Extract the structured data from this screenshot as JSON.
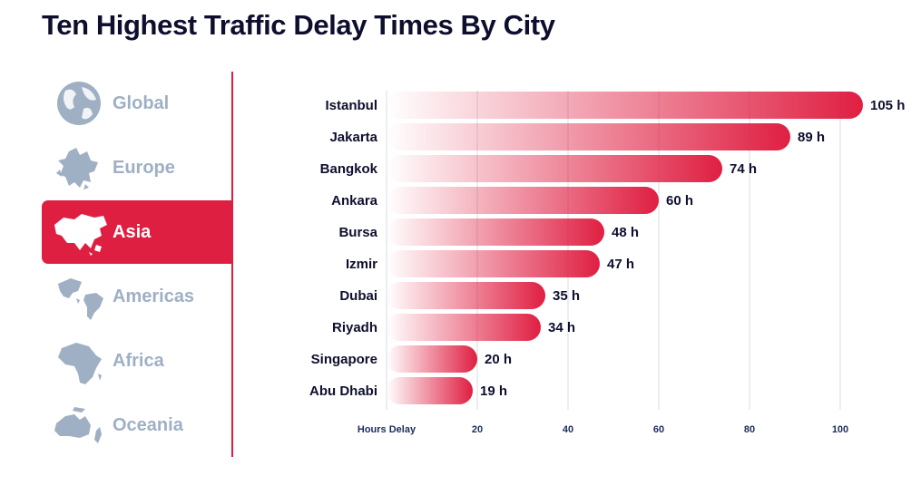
{
  "title": "Ten Highest Traffic Delay Times By City",
  "sidebar": {
    "items": [
      {
        "label": "Global",
        "icon": "globe-icon",
        "active": false
      },
      {
        "label": "Europe",
        "icon": "europe-map-icon",
        "active": false
      },
      {
        "label": "Asia",
        "icon": "asia-map-icon",
        "active": true
      },
      {
        "label": "Americas",
        "icon": "americas-map-icon",
        "active": false
      },
      {
        "label": "Africa",
        "icon": "africa-map-icon",
        "active": false
      },
      {
        "label": "Oceania",
        "icon": "oceania-map-icon",
        "active": false
      }
    ]
  },
  "colors": {
    "accent": "#df1f42",
    "inactive": "#9fb0c4",
    "title": "#0e0f2e",
    "axis": "#1b2d5b",
    "grid": "#d9dce5"
  },
  "chart_data": {
    "type": "bar",
    "orientation": "horizontal",
    "xlabel": "Hours Delay",
    "categories": [
      "Istanbul",
      "Jakarta",
      "Bangkok",
      "Ankara",
      "Bursa",
      "Izmir",
      "Dubai",
      "Riyadh",
      "Singapore",
      "Abu Dhabi"
    ],
    "values": [
      105,
      89,
      74,
      60,
      48,
      47,
      35,
      34,
      20,
      19
    ],
    "value_suffix": " h",
    "xticks": [
      20,
      40,
      60,
      80,
      100
    ],
    "xlim": [
      0,
      105
    ],
    "grid": true,
    "legend": "none"
  }
}
